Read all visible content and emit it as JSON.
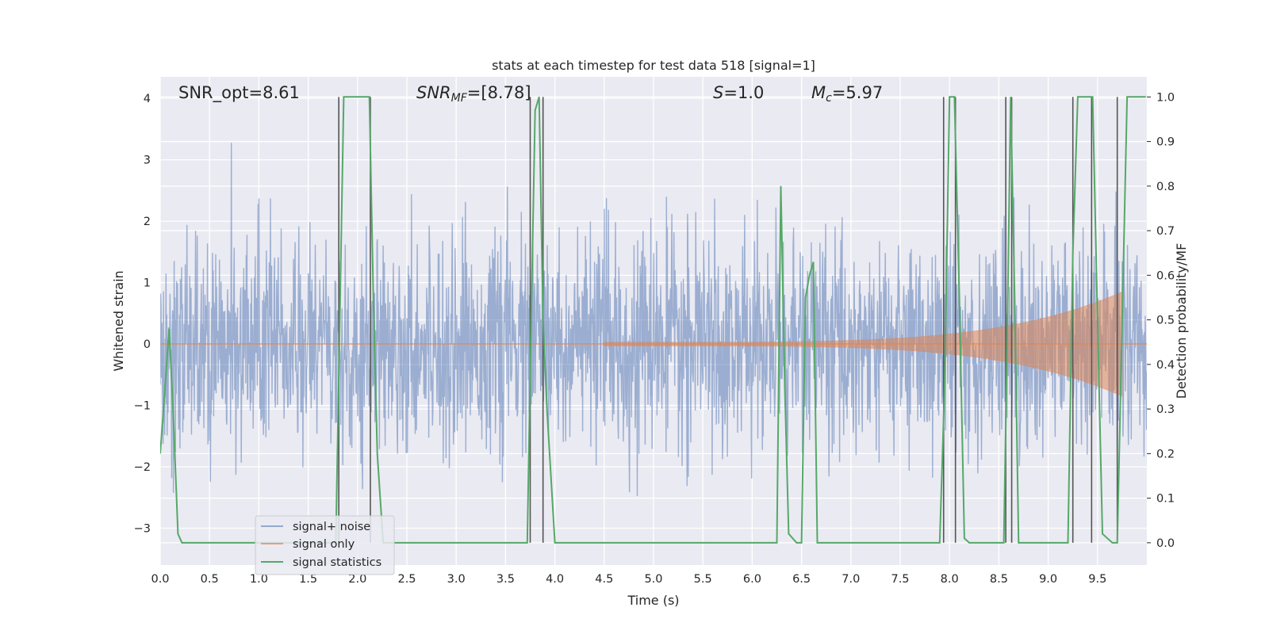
{
  "chart_data": {
    "type": "line",
    "title": "stats at each timestep for test data 518 [signal=1]",
    "xlabel": "Time (s)",
    "ylabel": "Whitened strain",
    "y2label": "Detection probability/MF",
    "xlim": [
      0.0,
      10.0
    ],
    "ylim": [
      -3.6,
      4.35
    ],
    "y2lim": [
      -0.05,
      1.045
    ],
    "xticks": [
      "0.0",
      "0.5",
      "1.0",
      "1.5",
      "2.0",
      "2.5",
      "3.0",
      "3.5",
      "4.0",
      "4.5",
      "5.0",
      "5.5",
      "6.0",
      "6.5",
      "7.0",
      "7.5",
      "8.0",
      "8.5",
      "9.0",
      "9.5"
    ],
    "yticks": [
      "−3",
      "−2",
      "−1",
      "0",
      "1",
      "2",
      "3",
      "4"
    ],
    "y2ticks": [
      "0.0",
      "0.1",
      "0.2",
      "0.3",
      "0.4",
      "0.5",
      "0.6",
      "0.7",
      "0.8",
      "0.9",
      "1.0"
    ],
    "grid": true,
    "legend_position": "lower-left",
    "annotations": {
      "snr_opt": "SNR_opt=8.61",
      "snr_mf_label": "SNR",
      "snr_mf_sub": "MF",
      "snr_mf_value": "=[8.78]",
      "s_label": "S",
      "s_value": "=1.0",
      "mc_label": "M",
      "mc_sub": "c",
      "mc_value": "=5.97"
    },
    "series": [
      {
        "name": "signal+ noise",
        "color": "#4c72b0",
        "description_kind": "noise",
        "amplitude_std": 0.85
      },
      {
        "name": "signal only",
        "color": "#dd8452",
        "chirp_start": 4.5,
        "chirp_end": 9.75,
        "chirp_peak_amplitude": 0.85
      },
      {
        "name": "signal statistics",
        "color": "#55a868",
        "x": [
          0.0,
          0.05,
          0.09,
          0.13,
          0.18,
          0.22,
          1.78,
          1.82,
          1.86,
          1.9,
          2.12,
          2.16,
          2.2,
          2.26,
          2.3,
          3.72,
          3.76,
          3.8,
          3.84,
          3.88,
          3.92,
          4.0,
          4.04,
          6.25,
          6.29,
          6.33,
          6.37,
          6.45,
          6.5,
          6.54,
          6.58,
          6.62,
          6.66,
          6.7,
          7.9,
          7.95,
          8.0,
          8.05,
          8.1,
          8.15,
          8.2,
          8.55,
          8.58,
          8.62,
          8.66,
          8.7,
          9.2,
          9.25,
          9.3,
          9.35,
          9.45,
          9.5,
          9.55,
          9.65,
          9.7,
          9.75,
          9.8,
          9.99
        ],
        "values": [
          0.2,
          0.35,
          0.48,
          0.3,
          0.02,
          0.0,
          0.0,
          0.5,
          1.0,
          1.0,
          1.0,
          0.55,
          0.2,
          0.0,
          0.0,
          0.0,
          0.5,
          0.97,
          1.0,
          0.5,
          0.3,
          0.0,
          0.0,
          0.0,
          0.8,
          0.35,
          0.02,
          0.0,
          0.0,
          0.55,
          0.6,
          0.63,
          0.0,
          0.0,
          0.0,
          0.35,
          1.0,
          1.0,
          0.55,
          0.01,
          0.0,
          0.0,
          0.4,
          1.0,
          0.55,
          0.0,
          0.0,
          0.65,
          1.0,
          1.0,
          1.0,
          0.5,
          0.02,
          0.0,
          0.0,
          0.5,
          1.0,
          1.0
        ]
      }
    ],
    "vertical_lines": [
      1.81,
      2.13,
      3.75,
      3.88,
      7.94,
      8.06,
      8.57,
      8.63,
      9.25,
      9.44,
      9.7
    ]
  }
}
